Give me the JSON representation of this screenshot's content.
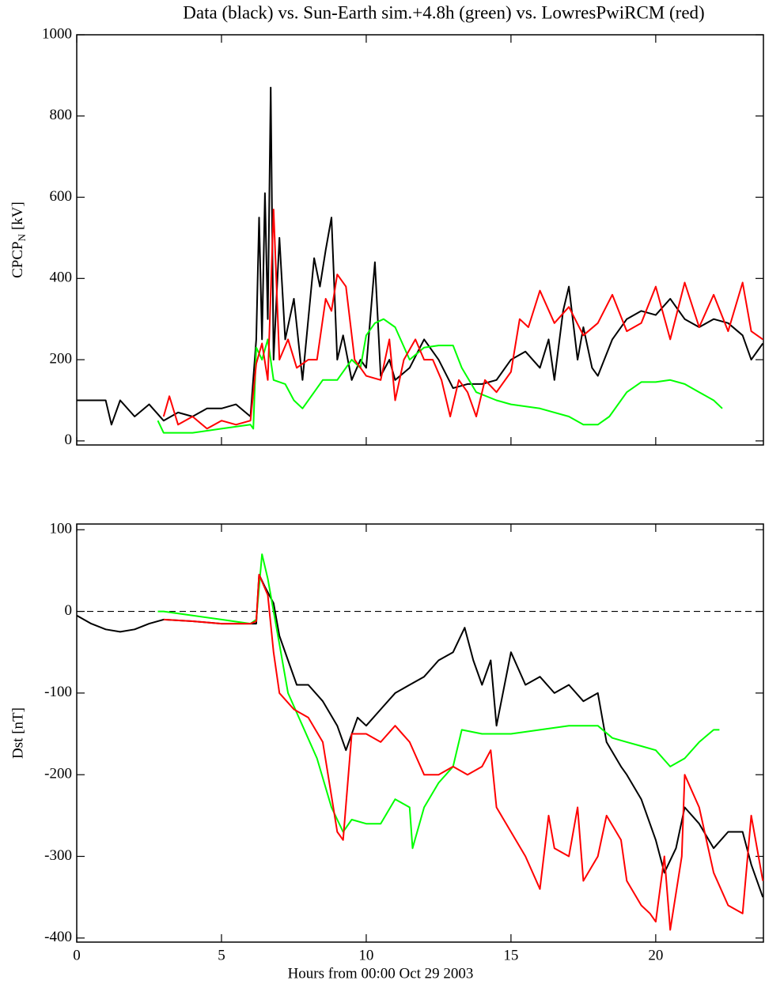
{
  "chart_data": [
    {
      "type": "line",
      "title": "Data (black) vs. Sun-Earth sim.+4.8h (green) vs. LowresPwiRCM (red)",
      "ylabel": [
        "CPCP",
        "N",
        "[kV]"
      ],
      "xlim": [
        0,
        23.72
      ],
      "ylim": [
        -10,
        1000
      ],
      "xticks": [
        0,
        5,
        10,
        15,
        20
      ],
      "show_xtick_labels": false,
      "yticks": [
        0,
        200,
        400,
        600,
        800,
        1000
      ],
      "series": [
        {
          "color": "#000000",
          "x": [
            0,
            1,
            1.2,
            1.5,
            2,
            2.5,
            3,
            3.5,
            4,
            4.5,
            5,
            5.5,
            6,
            6.2,
            6.3,
            6.4,
            6.5,
            6.6,
            6.7,
            6.8,
            7,
            7.2,
            7.5,
            7.8,
            8,
            8.2,
            8.4,
            8.6,
            8.8,
            9,
            9.2,
            9.5,
            9.8,
            10,
            10.3,
            10.5,
            10.8,
            11,
            11.5,
            12,
            12.5,
            13,
            13.5,
            14,
            14.5,
            15,
            15.5,
            16,
            16.3,
            16.5,
            16.8,
            17,
            17.3,
            17.5,
            17.8,
            18,
            18.5,
            19,
            19.5,
            20,
            20.5,
            21,
            21.5,
            22,
            22.5,
            23,
            23.3,
            23.7
          ],
          "values": [
            100,
            100,
            40,
            100,
            60,
            90,
            50,
            70,
            60,
            80,
            80,
            90,
            60,
            250,
            550,
            250,
            610,
            300,
            870,
            200,
            500,
            250,
            350,
            150,
            300,
            450,
            380,
            470,
            550,
            200,
            260,
            150,
            200,
            180,
            440,
            160,
            200,
            150,
            180,
            250,
            200,
            130,
            140,
            140,
            150,
            200,
            220,
            180,
            250,
            150,
            320,
            380,
            200,
            280,
            180,
            160,
            250,
            300,
            320,
            310,
            350,
            300,
            280,
            300,
            290,
            260,
            200,
            240
          ]
        },
        {
          "color": "#00ff00",
          "x": [
            2.8,
            3,
            4,
            5,
            6,
            6.1,
            6.2,
            6.4,
            6.6,
            6.8,
            7.2,
            7.5,
            7.8,
            8.2,
            8.5,
            9,
            9.5,
            9.8,
            10,
            10.3,
            10.6,
            11,
            11.5,
            12,
            12.5,
            13,
            13.3,
            13.8,
            14.5,
            15,
            16,
            17,
            17.5,
            18,
            18.4,
            19,
            19.5,
            20,
            20.5,
            21,
            21.5,
            22,
            22.3
          ],
          "values": [
            50,
            20,
            20,
            30,
            40,
            30,
            230,
            200,
            250,
            150,
            140,
            100,
            80,
            120,
            150,
            150,
            200,
            180,
            260,
            290,
            300,
            280,
            200,
            230,
            235,
            235,
            180,
            120,
            100,
            90,
            80,
            60,
            40,
            40,
            60,
            120,
            145,
            145,
            150,
            140,
            120,
            100,
            80
          ]
        },
        {
          "color": "#ff0000",
          "x": [
            3,
            3.2,
            3.5,
            4,
            4.5,
            5,
            5.5,
            6,
            6.2,
            6.4,
            6.6,
            6.8,
            7,
            7.3,
            7.6,
            8,
            8.3,
            8.6,
            8.8,
            9,
            9.3,
            9.6,
            10,
            10.5,
            10.8,
            11,
            11.3,
            11.7,
            12,
            12.3,
            12.6,
            12.9,
            13.2,
            13.5,
            13.8,
            14.1,
            14.5,
            15,
            15.3,
            15.6,
            16,
            16.5,
            17,
            17.5,
            18,
            18.5,
            19,
            19.5,
            20,
            20.5,
            21,
            21.5,
            22,
            22.5,
            23,
            23.3,
            23.7
          ],
          "values": [
            60,
            110,
            40,
            60,
            30,
            50,
            40,
            50,
            190,
            240,
            150,
            570,
            200,
            250,
            180,
            200,
            200,
            350,
            320,
            410,
            380,
            200,
            160,
            150,
            250,
            100,
            200,
            250,
            200,
            200,
            150,
            60,
            150,
            120,
            60,
            150,
            120,
            170,
            300,
            280,
            370,
            290,
            330,
            260,
            290,
            360,
            270,
            290,
            380,
            250,
            390,
            280,
            360,
            270,
            390,
            270,
            250
          ]
        }
      ]
    },
    {
      "type": "line",
      "ylabel": "Dst [nT]",
      "xlabel": "Hours from 00:00 Oct 29 2003",
      "xlim": [
        0,
        23.72
      ],
      "ylim": [
        -405,
        107
      ],
      "xticks": [
        0,
        5,
        10,
        15,
        20
      ],
      "show_xtick_labels": true,
      "yticks": [
        100,
        0,
        -100,
        -200,
        -300,
        -400
      ],
      "reference_line": 0,
      "series": [
        {
          "color": "#000000",
          "x": [
            0,
            0.5,
            1,
            1.5,
            2,
            2.5,
            3,
            4,
            5,
            6,
            6.2,
            6.3,
            6.5,
            6.8,
            7,
            7.3,
            7.6,
            8,
            8.5,
            9,
            9.3,
            9.7,
            10,
            10.5,
            11,
            11.5,
            12,
            12.5,
            13,
            13.4,
            13.7,
            14,
            14.3,
            14.5,
            15,
            15.5,
            16,
            16.5,
            17,
            17.5,
            18,
            18.3,
            18.8,
            19,
            19.5,
            20,
            20.3,
            20.7,
            21,
            21.5,
            22,
            22.5,
            23,
            23.3,
            23.7
          ],
          "values": [
            -5,
            -15,
            -22,
            -25,
            -22,
            -15,
            -10,
            -12,
            -15,
            -15,
            -15,
            45,
            30,
            10,
            -30,
            -60,
            -90,
            -90,
            -110,
            -140,
            -170,
            -130,
            -140,
            -120,
            -100,
            -90,
            -80,
            -60,
            -50,
            -20,
            -60,
            -90,
            -60,
            -140,
            -50,
            -90,
            -80,
            -100,
            -90,
            -110,
            -100,
            -160,
            -190,
            -200,
            -230,
            -280,
            -320,
            -290,
            -240,
            -260,
            -290,
            -270,
            -270,
            -310,
            -350
          ]
        },
        {
          "color": "#00ff00",
          "x": [
            2.8,
            3,
            4,
            5,
            6,
            6.2,
            6.4,
            6.6,
            7,
            7.3,
            7.8,
            8.3,
            8.8,
            9.2,
            9.5,
            10,
            10.5,
            11,
            11.5,
            11.6,
            12,
            12.5,
            13,
            13.3,
            14,
            15,
            16,
            17,
            18,
            18.5,
            19,
            19.5,
            20,
            20.5,
            21,
            21.5,
            22,
            22.2
          ],
          "values": [
            0,
            0,
            -5,
            -10,
            -15,
            -10,
            70,
            40,
            -40,
            -100,
            -140,
            -180,
            -240,
            -270,
            -255,
            -260,
            -260,
            -230,
            -240,
            -290,
            -240,
            -210,
            -190,
            -145,
            -150,
            -150,
            -145,
            -140,
            -140,
            -155,
            -160,
            -165,
            -170,
            -190,
            -180,
            -160,
            -145,
            -145
          ]
        },
        {
          "color": "#ff0000",
          "x": [
            3,
            4,
            5,
            6,
            6.2,
            6.3,
            6.6,
            6.8,
            7,
            7.5,
            8,
            8.5,
            9,
            9.2,
            9.5,
            10,
            10.5,
            11,
            11.5,
            12,
            12.5,
            13,
            13.5,
            14,
            14.3,
            14.5,
            15,
            15.5,
            16,
            16.3,
            16.5,
            17,
            17.3,
            17.5,
            18,
            18.3,
            18.8,
            19,
            19.5,
            19.8,
            20,
            20.3,
            20.5,
            20.9,
            21,
            21.5,
            22,
            22.5,
            23,
            23.3,
            23.7
          ],
          "values": [
            -10,
            -12,
            -15,
            -15,
            -12,
            45,
            20,
            -50,
            -100,
            -120,
            -130,
            -160,
            -270,
            -280,
            -150,
            -150,
            -160,
            -140,
            -160,
            -200,
            -200,
            -190,
            -200,
            -190,
            -170,
            -240,
            -270,
            -300,
            -340,
            -250,
            -290,
            -300,
            -240,
            -330,
            -300,
            -250,
            -280,
            -330,
            -360,
            -370,
            -380,
            -300,
            -390,
            -300,
            -200,
            -240,
            -320,
            -360,
            -370,
            -250,
            -330
          ]
        }
      ]
    }
  ]
}
